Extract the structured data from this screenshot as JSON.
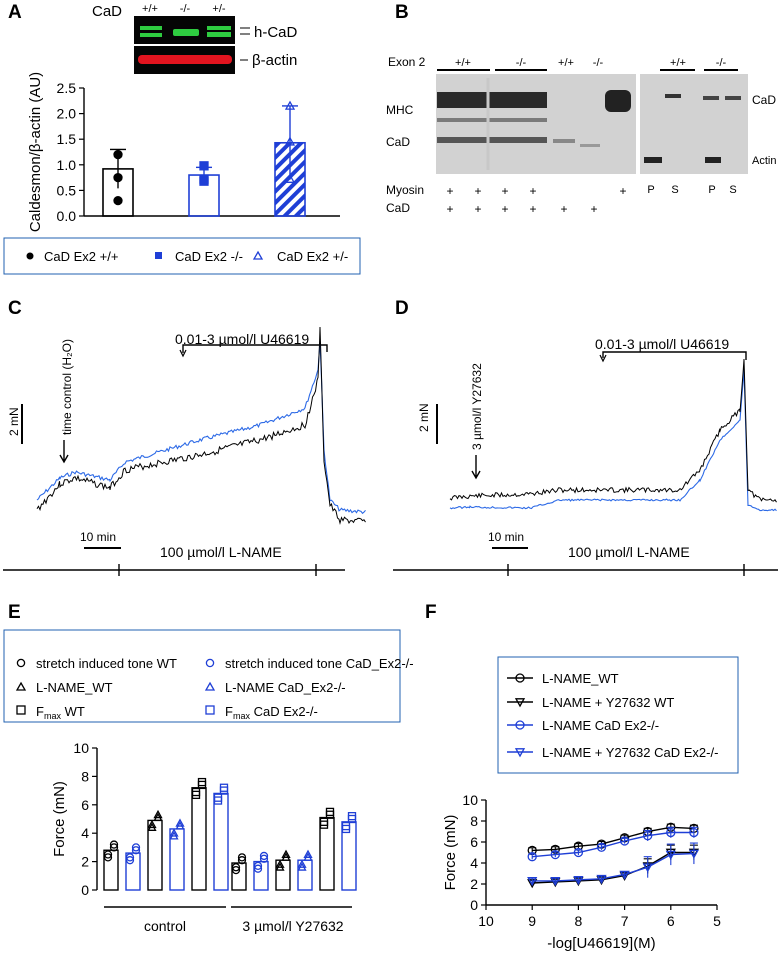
{
  "colors": {
    "black": "#000000",
    "blue": "#1f3fd6",
    "trace_blue": "#2d6ae6",
    "blot_green": "#2ecc40",
    "blot_red": "#e3141f",
    "gel_gray": "#bdbdbd"
  },
  "panels": {
    "A": {
      "label": "A",
      "blot": {
        "protein": "CaD",
        "lanes": [
          "+/+",
          "-/-",
          "+/-"
        ],
        "band_top": "h-CaD",
        "band_bottom": "β-actin"
      }
    },
    "B": {
      "label": "B",
      "exon": "Exon 2",
      "groups_left": [
        "+/+",
        "-/-",
        "+/+",
        "-/-"
      ],
      "groups_right": [
        "+/+",
        "-/-"
      ],
      "band_labels_left": [
        "MHC",
        "CaD"
      ],
      "band_labels_right": [
        "CaD",
        "Actin"
      ],
      "row_myosin": "Myosin",
      "row_cad": "CaD",
      "plus": "+",
      "ps_labels": [
        "P",
        "S",
        "P",
        "S"
      ]
    },
    "C": {
      "label": "C",
      "marker": "time control (H₂O)",
      "drug": "0.01-3 µmol/l U46619",
      "scale_force": "2 mN",
      "scale_time": "10 min",
      "lname": "100 µmol/l L-NAME"
    },
    "D": {
      "label": "D",
      "marker": "3 µmol/l Y27632",
      "drug": "0.01-3 µmol/l U46619",
      "scale_force": "2 mN",
      "scale_time": "10 min",
      "lname": "100 µmol/l L-NAME"
    },
    "E": {
      "label": "E"
    },
    "F": {
      "label": "F"
    }
  },
  "chart_data": [
    {
      "id": "A",
      "type": "bar",
      "ylabel": "Caldesmon/β-actin (AU)",
      "ylim": [
        0,
        2.5
      ],
      "yticks": [
        "0.0",
        "0.5",
        "1.0",
        "1.5",
        "2.0",
        "2.5"
      ],
      "categories": [
        "CaD Ex2 +/+",
        "CaD Ex2 -/-",
        "CaD Ex2 +/-"
      ],
      "values": [
        0.92,
        0.8,
        1.43
      ],
      "errors": [
        0.38,
        0.15,
        0.72
      ],
      "points": [
        [
          1.2,
          0.75,
          0.3
        ],
        [
          0.98,
          0.72,
          0.68
        ],
        [
          2.15,
          0.72,
          1.45
        ]
      ],
      "legend": [
        "CaD Ex2 +/+",
        "CaD Ex2 -/-",
        "CaD Ex2 +/-"
      ]
    },
    {
      "id": "E",
      "type": "bar",
      "ylabel": "Force (mN)",
      "ylim": [
        0,
        10
      ],
      "yticks": [
        "0",
        "2",
        "4",
        "6",
        "8",
        "10"
      ],
      "groups": [
        "control",
        "3 µmol/l Y27632"
      ],
      "legend": [
        {
          "text": "stretch induced tone WT"
        },
        {
          "text": "stretch induced tone CaD_Ex2-/-"
        },
        {
          "text": "L-NAME_WT"
        },
        {
          "text": "L-NAME CaD_Ex2-/-"
        },
        {
          "text": "F",
          "sub": "max",
          "tail": " WT"
        },
        {
          "text": "F",
          "sub": "max",
          "tail": " CaD Ex2-/-"
        }
      ],
      "series": [
        {
          "name": "stretch induced tone WT",
          "values": [
            2.8,
            1.9
          ]
        },
        {
          "name": "stretch induced tone CaD_Ex2-/-",
          "values": [
            2.6,
            2.0
          ]
        },
        {
          "name": "L-NAME_WT",
          "values": [
            4.9,
            2.1
          ]
        },
        {
          "name": "L-NAME CaD_Ex2-/-",
          "values": [
            4.3,
            2.1
          ]
        },
        {
          "name": "Fmax WT",
          "values": [
            7.2,
            5.1
          ]
        },
        {
          "name": "Fmax CaD Ex2-/-",
          "values": [
            6.8,
            4.8
          ]
        }
      ]
    },
    {
      "id": "F",
      "type": "line",
      "ylabel": "Force (mN)",
      "xlabel": "-log[U46619](M)",
      "xlim": [
        10,
        5
      ],
      "ylim": [
        0,
        10
      ],
      "xticks": [
        "10",
        "9",
        "8",
        "7",
        "6",
        "5"
      ],
      "yticks": [
        "0",
        "2",
        "4",
        "6",
        "8",
        "10"
      ],
      "x": [
        9,
        8.5,
        8,
        7.5,
        7,
        6.5,
        6,
        5.5
      ],
      "series": [
        {
          "name": "L-NAME_WT",
          "values": [
            5.2,
            5.3,
            5.6,
            5.8,
            6.4,
            7.0,
            7.4,
            7.3
          ]
        },
        {
          "name": "L-NAME + Y27632 WT",
          "values": [
            2.1,
            2.2,
            2.3,
            2.4,
            2.8,
            3.7,
            5.0,
            5.0
          ]
        },
        {
          "name": "L-NAME CaD Ex2-/-",
          "values": [
            4.6,
            4.8,
            5.0,
            5.5,
            6.1,
            6.6,
            6.9,
            6.9
          ]
        },
        {
          "name": "L-NAME + Y27632 CaD Ex2-/-",
          "values": [
            2.3,
            2.3,
            2.4,
            2.5,
            2.9,
            3.6,
            4.8,
            4.9
          ]
        }
      ]
    }
  ]
}
